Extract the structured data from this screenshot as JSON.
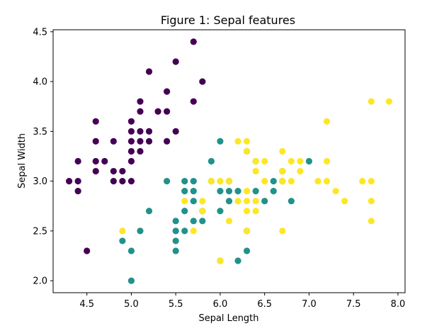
{
  "chart_data": {
    "type": "scatter",
    "title": "Figure 1: Sepal features",
    "xlabel": "Sepal Length",
    "ylabel": "Sepal Width",
    "xlim": [
      4.12,
      8.08
    ],
    "ylim": [
      1.88,
      4.52
    ],
    "xticks": [
      "4.5",
      "5.0",
      "5.5",
      "6.0",
      "6.5",
      "7.0",
      "7.5",
      "8.0"
    ],
    "yticks": [
      "2.0",
      "2.5",
      "3.0",
      "3.5",
      "4.0",
      "4.5"
    ],
    "grid": false,
    "legend": "none",
    "colors": [
      "#440154",
      "#21918c",
      "#fde725"
    ],
    "series": [
      {
        "points": [
          [
            4.3,
            3.0
          ],
          [
            4.4,
            2.9
          ],
          [
            4.4,
            3.0
          ],
          [
            4.4,
            3.2
          ],
          [
            4.5,
            2.3
          ],
          [
            4.6,
            3.1
          ],
          [
            4.6,
            3.2
          ],
          [
            4.6,
            3.4
          ],
          [
            4.6,
            3.6
          ],
          [
            4.7,
            3.2
          ],
          [
            4.8,
            3.0
          ],
          [
            4.8,
            3.1
          ],
          [
            4.8,
            3.4
          ],
          [
            4.9,
            3.0
          ],
          [
            4.9,
            3.1
          ],
          [
            5.0,
            3.0
          ],
          [
            5.0,
            3.2
          ],
          [
            5.0,
            3.3
          ],
          [
            5.0,
            3.4
          ],
          [
            5.0,
            3.5
          ],
          [
            5.0,
            3.6
          ],
          [
            5.1,
            3.3
          ],
          [
            5.1,
            3.4
          ],
          [
            5.1,
            3.5
          ],
          [
            5.1,
            3.7
          ],
          [
            5.1,
            3.8
          ],
          [
            5.2,
            3.4
          ],
          [
            5.2,
            3.5
          ],
          [
            5.2,
            4.1
          ],
          [
            5.3,
            3.7
          ],
          [
            5.4,
            3.4
          ],
          [
            5.4,
            3.7
          ],
          [
            5.4,
            3.9
          ],
          [
            5.5,
            3.5
          ],
          [
            5.5,
            4.2
          ],
          [
            5.7,
            3.8
          ],
          [
            5.7,
            4.4
          ],
          [
            5.8,
            4.0
          ]
        ]
      },
      {
        "points": [
          [
            4.9,
            2.4
          ],
          [
            5.0,
            2.0
          ],
          [
            5.0,
            2.3
          ],
          [
            5.1,
            2.5
          ],
          [
            5.2,
            2.7
          ],
          [
            5.4,
            3.0
          ],
          [
            5.5,
            2.3
          ],
          [
            5.5,
            2.4
          ],
          [
            5.5,
            2.5
          ],
          [
            5.5,
            2.6
          ],
          [
            5.6,
            2.5
          ],
          [
            5.6,
            2.7
          ],
          [
            5.6,
            2.9
          ],
          [
            5.6,
            3.0
          ],
          [
            5.7,
            2.6
          ],
          [
            5.7,
            2.8
          ],
          [
            5.7,
            2.9
          ],
          [
            5.7,
            3.0
          ],
          [
            5.8,
            2.6
          ],
          [
            5.8,
            2.7
          ],
          [
            5.9,
            3.0
          ],
          [
            5.9,
            3.2
          ],
          [
            6.0,
            2.2
          ],
          [
            6.0,
            2.7
          ],
          [
            6.0,
            2.9
          ],
          [
            6.0,
            3.4
          ],
          [
            6.1,
            2.8
          ],
          [
            6.1,
            2.9
          ],
          [
            6.1,
            3.0
          ],
          [
            6.2,
            2.2
          ],
          [
            6.2,
            2.9
          ],
          [
            6.3,
            2.3
          ],
          [
            6.3,
            2.5
          ],
          [
            6.3,
            3.3
          ],
          [
            6.4,
            2.9
          ],
          [
            6.4,
            3.2
          ],
          [
            6.5,
            2.8
          ],
          [
            6.6,
            2.9
          ],
          [
            6.6,
            3.0
          ],
          [
            6.7,
            3.0
          ],
          [
            6.7,
            3.1
          ],
          [
            6.8,
            2.8
          ],
          [
            7.0,
            3.2
          ]
        ]
      },
      {
        "points": [
          [
            4.9,
            2.5
          ],
          [
            5.6,
            2.8
          ],
          [
            5.7,
            2.5
          ],
          [
            5.8,
            2.7
          ],
          [
            5.8,
            2.8
          ],
          [
            5.9,
            3.0
          ],
          [
            6.0,
            2.2
          ],
          [
            6.0,
            3.0
          ],
          [
            6.1,
            2.6
          ],
          [
            6.1,
            3.0
          ],
          [
            6.2,
            2.8
          ],
          [
            6.2,
            3.4
          ],
          [
            6.3,
            2.5
          ],
          [
            6.3,
            2.7
          ],
          [
            6.3,
            2.8
          ],
          [
            6.3,
            2.9
          ],
          [
            6.3,
            3.3
          ],
          [
            6.3,
            3.4
          ],
          [
            6.4,
            2.7
          ],
          [
            6.4,
            2.8
          ],
          [
            6.4,
            3.1
          ],
          [
            6.4,
            3.2
          ],
          [
            6.5,
            3.0
          ],
          [
            6.5,
            3.2
          ],
          [
            6.7,
            2.5
          ],
          [
            6.7,
            3.0
          ],
          [
            6.7,
            3.1
          ],
          [
            6.7,
            3.3
          ],
          [
            6.8,
            3.0
          ],
          [
            6.8,
            3.2
          ],
          [
            6.9,
            3.1
          ],
          [
            6.9,
            3.2
          ],
          [
            7.1,
            3.0
          ],
          [
            7.2,
            3.0
          ],
          [
            7.2,
            3.2
          ],
          [
            7.2,
            3.6
          ],
          [
            7.3,
            2.9
          ],
          [
            7.4,
            2.8
          ],
          [
            7.6,
            3.0
          ],
          [
            7.7,
            2.6
          ],
          [
            7.7,
            2.8
          ],
          [
            7.7,
            3.0
          ],
          [
            7.7,
            3.8
          ],
          [
            7.9,
            3.8
          ]
        ]
      }
    ]
  }
}
